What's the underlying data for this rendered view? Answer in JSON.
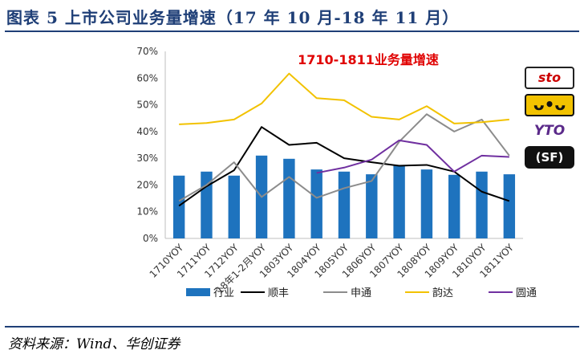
{
  "header": {
    "title": "图表 5 上市公司业务量增速（17 年 10 月-18 年 11 月）"
  },
  "source": "资料来源：Wind、华创证券",
  "logos": {
    "sto": "sto",
    "yunda": "ᴗ•ᴗ",
    "yto": "YTO",
    "sf": "(SF)"
  },
  "colors": {
    "industry": "#1e73be",
    "shunfeng": "#000000",
    "shentong": "#8c8c8c",
    "yunda": "#f2c200",
    "yuantong": "#7030a0",
    "chart_title": "#e00000"
  },
  "chart_data": {
    "type": "bar",
    "title": "1710-1811业务量增速",
    "categories": [
      "1710YOY",
      "1711YOY",
      "1712YOY",
      "18年1-2月YOY",
      "1803YOY",
      "1804YOY",
      "1805YOY",
      "1806YOY",
      "1807YOY",
      "1808YOY",
      "1809YOY",
      "1810YOY",
      "1811YOY"
    ],
    "ylim": [
      0,
      70
    ],
    "yticks": [
      "0%",
      "10%",
      "20%",
      "30%",
      "40%",
      "50%",
      "60%",
      "70%"
    ],
    "series": [
      {
        "name": "行业",
        "kind": "bar",
        "values": [
          23.5,
          25,
          23.5,
          31,
          29.8,
          25.8,
          25,
          24,
          27.5,
          25.8,
          23.8,
          25,
          24
        ]
      },
      {
        "name": "顺丰",
        "kind": "line",
        "values": [
          12.2,
          19.5,
          25.5,
          41.7,
          35,
          35.8,
          30,
          28.5,
          27.2,
          27.5,
          25,
          17.5,
          14
        ]
      },
      {
        "name": "申通",
        "kind": "line",
        "values": [
          14,
          20,
          28.5,
          15.5,
          23,
          15.2,
          18.8,
          21.5,
          36.2,
          46.5,
          40,
          44.5,
          31
        ]
      },
      {
        "name": "韵达",
        "kind": "line",
        "values": [
          42.7,
          43.2,
          44.5,
          50.5,
          61.7,
          52.5,
          51.7,
          45.5,
          44.5,
          49.5,
          43,
          43.5,
          44.5
        ]
      },
      {
        "name": "圆通",
        "kind": "line",
        "values": [
          null,
          null,
          null,
          null,
          null,
          24.5,
          26.5,
          29.5,
          36.7,
          35,
          25,
          31,
          30.5
        ]
      }
    ],
    "legend_position": "bottom"
  }
}
